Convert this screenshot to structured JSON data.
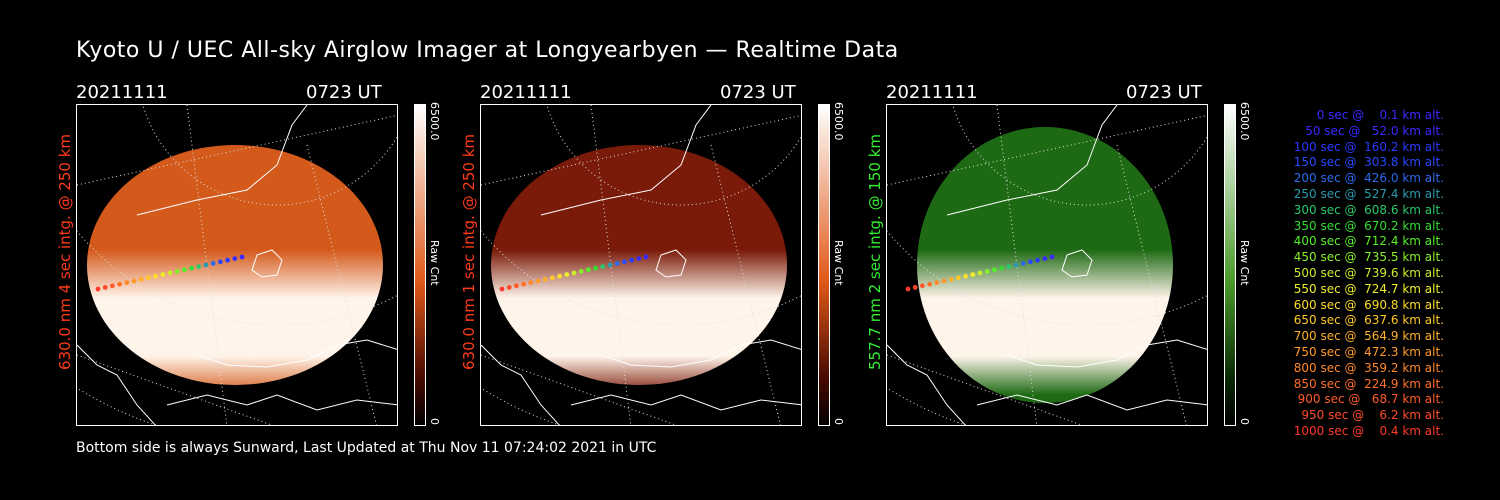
{
  "title": "Kyoto U / UEC All-sky Airglow Imager at Longyearbyen — Realtime Data",
  "panels": [
    {
      "date": "20211111",
      "time": "0723 UT",
      "side_label": "630.0 nm 4 sec intg. @ 250 km",
      "label_color": "#ff3a1a",
      "cbar_max": "6500.0",
      "cbar_min": "0",
      "cbar_unit": "Raw Cnt",
      "cbar_top": "#ffffff",
      "cbar_mid": "#e05a1a",
      "cbar_bot": "#4a0a00",
      "glow": "#d45a1c"
    },
    {
      "date": "20211111",
      "time": "0723 UT",
      "side_label": "630.0 nm 1 sec intg. @ 250 km",
      "label_color": "#ff3a1a",
      "cbar_max": "6500.0",
      "cbar_min": "0",
      "cbar_unit": "Raw Cnt",
      "cbar_top": "#ffffff",
      "cbar_mid": "#e05a1a",
      "cbar_bot": "#4a0a00",
      "glow": "#7a1a08"
    },
    {
      "date": "20211111",
      "time": "0723 UT",
      "side_label": "557.7 nm 2 sec intg. @ 150 km",
      "label_color": "#33ee33",
      "cbar_max": "6500.0",
      "cbar_min": "0",
      "cbar_unit": "Raw Cnt",
      "cbar_top": "#ffffff",
      "cbar_mid": "#4a9a2a",
      "cbar_bot": "#0a2a05",
      "glow": "#1e6a14"
    }
  ],
  "footer": "Bottom side is always Sunward, Last Updated at Thu Nov 11 07:24:02 2021 in UTC",
  "legend": [
    {
      "text": "0 sec @    0.1 km alt.",
      "color": "#3a2aff"
    },
    {
      "text": "50 sec @   52.0 km alt.",
      "color": "#3a2aff"
    },
    {
      "text": "100 sec @  160.2 km alt.",
      "color": "#2a3aff"
    },
    {
      "text": "150 sec @  303.8 km alt.",
      "color": "#2a4aff"
    },
    {
      "text": "200 sec @  426.0 km alt.",
      "color": "#2a6aee"
    },
    {
      "text": "250 sec @  527.4 km alt.",
      "color": "#2a9ab0"
    },
    {
      "text": "300 sec @  608.6 km alt.",
      "color": "#2ac86a"
    },
    {
      "text": "350 sec @  670.2 km alt.",
      "color": "#33dd33"
    },
    {
      "text": "400 sec @  712.4 km alt.",
      "color": "#55ee2a"
    },
    {
      "text": "450 sec @  735.5 km alt.",
      "color": "#88ee2a"
    },
    {
      "text": "500 sec @  739.6 km alt.",
      "color": "#c8ee2a"
    },
    {
      "text": "550 sec @  724.7 km alt.",
      "color": "#eeee2a"
    },
    {
      "text": "600 sec @  690.8 km alt.",
      "color": "#ffdd2a"
    },
    {
      "text": "650 sec @  637.6 km alt.",
      "color": "#ffc82a"
    },
    {
      "text": "700 sec @  564.9 km alt.",
      "color": "#ffb02a"
    },
    {
      "text": "750 sec @  472.3 km alt.",
      "color": "#ff9a2a"
    },
    {
      "text": "800 sec @  359.2 km alt.",
      "color": "#ff882a"
    },
    {
      "text": "850 sec @  224.9 km alt.",
      "color": "#ff702a"
    },
    {
      "text": "900 sec @   68.7 km alt.",
      "color": "#ff5a2a"
    },
    {
      "text": "950 sec @    6.2 km alt.",
      "color": "#ff4a2a"
    },
    {
      "text": "1000 sec @    0.4 km alt.",
      "color": "#ff3a2a"
    }
  ]
}
